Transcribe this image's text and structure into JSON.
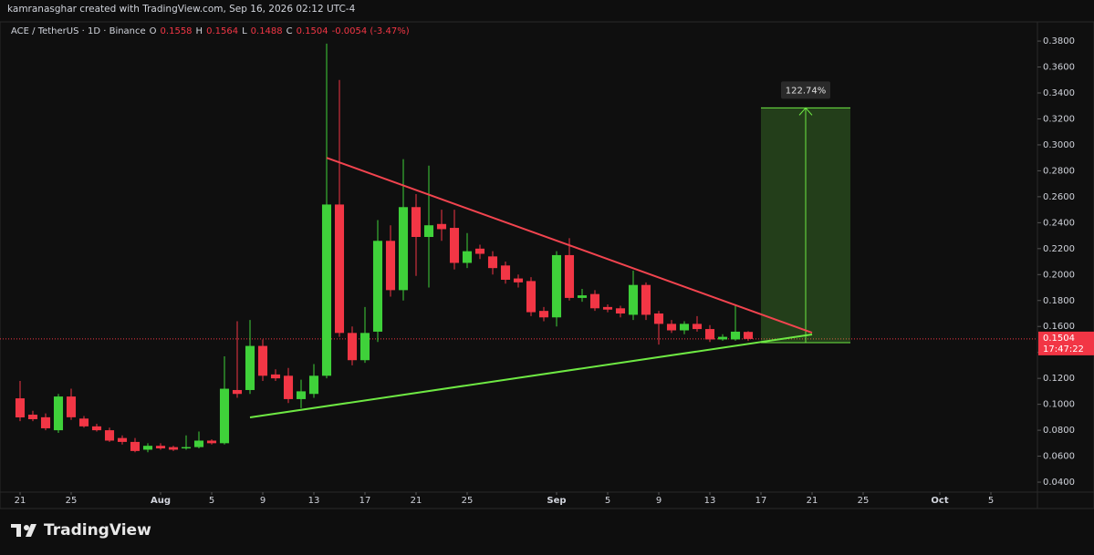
{
  "header": "kamranasghar created with TradingView.com, Sep 16, 2026 02:12 UTC-4",
  "footer_logo": "TradingView",
  "chart_data": {
    "type": "candlestick",
    "title": "ACE / TetherUS · 1D · Binance",
    "ohlc_legend": [
      {
        "key": "O",
        "value": "0.1558"
      },
      {
        "key": "H",
        "value": "0.1564"
      },
      {
        "key": "L",
        "value": "0.1488"
      },
      {
        "key": "C",
        "value": "0.1504"
      }
    ],
    "change": "-0.0054 (-3.47%)",
    "x": [
      "2026-07-21",
      "2026-07-22",
      "2026-07-23",
      "2026-07-24",
      "2026-07-25",
      "2026-07-26",
      "2026-07-27",
      "2026-07-28",
      "2026-07-29",
      "2026-07-30",
      "2026-07-31",
      "2026-08-01",
      "2026-08-02",
      "2026-08-03",
      "2026-08-04",
      "2026-08-05",
      "2026-08-06",
      "2026-08-07",
      "2026-08-08",
      "2026-08-09",
      "2026-08-10",
      "2026-08-11",
      "2026-08-12",
      "2026-08-13",
      "2026-08-14",
      "2026-08-15",
      "2026-08-16",
      "2026-08-17",
      "2026-08-18",
      "2026-08-19",
      "2026-08-20",
      "2026-08-21",
      "2026-08-22",
      "2026-08-23",
      "2026-08-24",
      "2026-08-25",
      "2026-08-26",
      "2026-08-27",
      "2026-08-28",
      "2026-08-29",
      "2026-08-30",
      "2026-08-31",
      "2026-09-01",
      "2026-09-02",
      "2026-09-03",
      "2026-09-04",
      "2026-09-05",
      "2026-09-06",
      "2026-09-07",
      "2026-09-08",
      "2026-09-09",
      "2026-09-10",
      "2026-09-11",
      "2026-09-12",
      "2026-09-13",
      "2026-09-14",
      "2026-09-15",
      "2026-09-16"
    ],
    "open": [
      0.1046,
      0.092,
      0.09,
      0.08,
      0.106,
      0.089,
      0.083,
      0.08,
      0.074,
      0.071,
      0.065,
      0.068,
      0.067,
      0.066,
      0.067,
      0.072,
      0.07,
      0.111,
      0.111,
      0.145,
      0.123,
      0.122,
      0.104,
      0.108,
      0.122,
      0.254,
      0.155,
      0.134,
      0.156,
      0.226,
      0.188,
      0.252,
      0.229,
      0.239,
      0.236,
      0.209,
      0.22,
      0.214,
      0.207,
      0.197,
      0.195,
      0.172,
      0.167,
      0.215,
      0.182,
      0.185,
      0.175,
      0.174,
      0.169,
      0.192,
      0.17,
      0.162,
      0.157,
      0.162,
      0.158,
      0.15,
      0.15,
      0.1558
    ],
    "high": [
      0.118,
      0.095,
      0.093,
      0.108,
      0.112,
      0.091,
      0.085,
      0.082,
      0.076,
      0.074,
      0.07,
      0.07,
      0.068,
      0.076,
      0.079,
      0.073,
      0.137,
      0.164,
      0.165,
      0.15,
      0.127,
      0.128,
      0.119,
      0.131,
      0.378,
      0.35,
      0.16,
      0.175,
      0.242,
      0.238,
      0.289,
      0.262,
      0.284,
      0.25,
      0.25,
      0.232,
      0.223,
      0.218,
      0.21,
      0.2,
      0.198,
      0.175,
      0.218,
      0.228,
      0.189,
      0.188,
      0.177,
      0.176,
      0.203,
      0.194,
      0.172,
      0.165,
      0.164,
      0.168,
      0.161,
      0.154,
      0.176,
      0.1564
    ],
    "low": [
      0.087,
      0.087,
      0.08,
      0.078,
      0.088,
      0.082,
      0.079,
      0.071,
      0.069,
      0.063,
      0.063,
      0.065,
      0.064,
      0.065,
      0.066,
      0.069,
      0.069,
      0.105,
      0.108,
      0.118,
      0.118,
      0.101,
      0.097,
      0.105,
      0.12,
      0.152,
      0.13,
      0.132,
      0.148,
      0.183,
      0.18,
      0.199,
      0.19,
      0.226,
      0.204,
      0.205,
      0.212,
      0.2,
      0.193,
      0.19,
      0.168,
      0.164,
      0.16,
      0.18,
      0.179,
      0.172,
      0.171,
      0.167,
      0.165,
      0.165,
      0.146,
      0.155,
      0.154,
      0.156,
      0.148,
      0.149,
      0.149,
      0.1488
    ],
    "close": [
      0.0899,
      0.0885,
      0.0815,
      0.106,
      0.09,
      0.083,
      0.08,
      0.072,
      0.071,
      0.064,
      0.068,
      0.066,
      0.065,
      0.067,
      0.072,
      0.07,
      0.112,
      0.108,
      0.145,
      0.122,
      0.12,
      0.104,
      0.11,
      0.122,
      0.254,
      0.155,
      0.134,
      0.155,
      0.226,
      0.188,
      0.252,
      0.229,
      0.238,
      0.235,
      0.209,
      0.218,
      0.216,
      0.205,
      0.196,
      0.194,
      0.171,
      0.167,
      0.215,
      0.182,
      0.184,
      0.174,
      0.173,
      0.17,
      0.192,
      0.169,
      0.162,
      0.157,
      0.162,
      0.158,
      0.15,
      0.152,
      0.156,
      0.1504
    ],
    "up_color": "#3fd13a",
    "down_color": "#f23645",
    "xlim": [
      "2026-07-20",
      "2026-10-09"
    ],
    "xticks": [
      {
        "value": "2026-07-21",
        "label": "21"
      },
      {
        "value": "2026-07-25",
        "label": "25"
      },
      {
        "value": "2026-08-01",
        "label": "Aug"
      },
      {
        "value": "2026-08-05",
        "label": "5"
      },
      {
        "value": "2026-08-09",
        "label": "9"
      },
      {
        "value": "2026-08-13",
        "label": "13"
      },
      {
        "value": "2026-08-17",
        "label": "17"
      },
      {
        "value": "2026-08-21",
        "label": "21"
      },
      {
        "value": "2026-08-25",
        "label": "25"
      },
      {
        "value": "2026-09-01",
        "label": "Sep"
      },
      {
        "value": "2026-09-05",
        "label": "5"
      },
      {
        "value": "2026-09-09",
        "label": "9"
      },
      {
        "value": "2026-09-13",
        "label": "13"
      },
      {
        "value": "2026-09-17",
        "label": "17"
      },
      {
        "value": "2026-09-21",
        "label": "21"
      },
      {
        "value": "2026-09-25",
        "label": "25"
      },
      {
        "value": "2026-10-01",
        "label": "Oct"
      },
      {
        "value": "2026-10-05",
        "label": "5"
      }
    ],
    "ylim": [
      0.0323,
      0.3948
    ],
    "yticks": [
      {
        "value": 0.04,
        "label": "0.0400"
      },
      {
        "value": 0.06,
        "label": "0.0600"
      },
      {
        "value": 0.08,
        "label": "0.0800"
      },
      {
        "value": 0.1,
        "label": "0.1000"
      },
      {
        "value": 0.12,
        "label": "0.1200"
      },
      {
        "value": 0.14,
        "label": "0.1400"
      },
      {
        "value": 0.16,
        "label": "0.1600"
      },
      {
        "value": 0.18,
        "label": "0.1800"
      },
      {
        "value": 0.2,
        "label": "0.2000"
      },
      {
        "value": 0.22,
        "label": "0.2200"
      },
      {
        "value": 0.24,
        "label": "0.2400"
      },
      {
        "value": 0.26,
        "label": "0.2600"
      },
      {
        "value": 0.28,
        "label": "0.2800"
      },
      {
        "value": 0.3,
        "label": "0.3000"
      },
      {
        "value": 0.32,
        "label": "0.3200"
      },
      {
        "value": 0.34,
        "label": "0.3400"
      },
      {
        "value": 0.36,
        "label": "0.3600"
      },
      {
        "value": 0.38,
        "label": "0.3800"
      }
    ],
    "grid": false,
    "last_price": {
      "value": 0.1504,
      "label": "0.1504",
      "countdown": "17:47:22"
    },
    "trendlines": [
      {
        "color": "#f2444f",
        "start": [
          "2026-08-14",
          0.29
        ],
        "end": [
          "2026-09-21",
          0.1552
        ]
      },
      {
        "color": "#6ee843",
        "start": [
          "2026-08-08",
          0.0899
        ],
        "end": [
          "2026-09-21",
          0.1538
        ]
      }
    ],
    "position": {
      "start": "2026-09-17",
      "end": "2026-09-24",
      "entry": 0.1475,
      "target": 0.3285,
      "label": "122.74%",
      "color": "#6ee843"
    }
  }
}
